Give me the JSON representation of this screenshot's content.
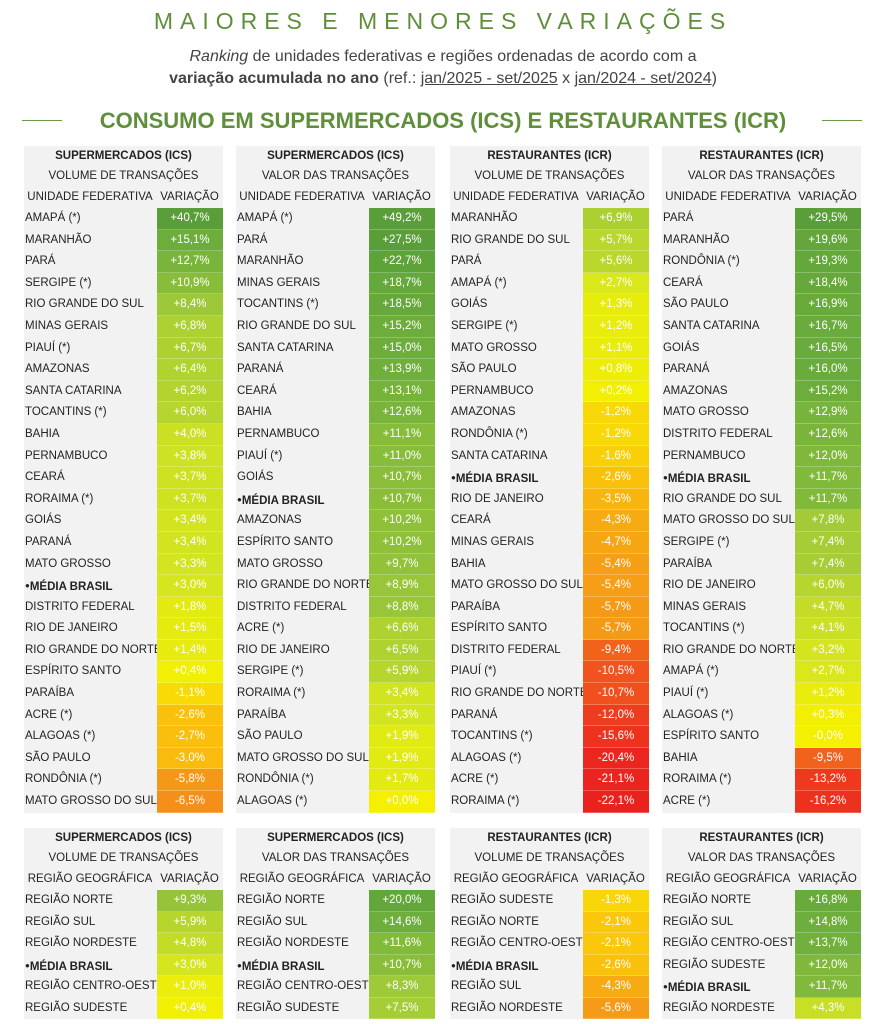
{
  "header": {
    "title": "MAIORES E MENORES VARIAÇÕES",
    "subtitle_italic": "Ranking",
    "subtitle_rest": " de unidades federativas e regiões ordenadas de acordo com a",
    "subtitle2_bold": "variação acumulada no ano",
    "subtitle2_ref": " (ref.: ",
    "period_current": "jan/2025 - set/2025",
    "versus": " x  ",
    "period_previous": "jan/2024 - set/2024",
    "close_paren": ")",
    "section_title": "CONSUMO EM SUPERMERCADOS (ICS) E RESTAURANTES (ICR)"
  },
  "colors": {
    "green_dark": "#5b9e3a",
    "green_light": "#a6cc37",
    "yellow": "#f2ee00",
    "orange": "#f4951a",
    "red": "#ea2a22",
    "title_green": "#5f8f3a"
  },
  "uf_tables": [
    {
      "title": "SUPERMERCADOS (ICS)",
      "subtitle": "VOLUME DE TRANSAÇÕES",
      "col_name": "UNIDADE FEDERATIVA",
      "col_value": "VARIAÇÃO",
      "rows": [
        {
          "name": "AMAPÁ (*)",
          "value": "+40,7%",
          "num": 40.7
        },
        {
          "name": "MARANHÃO",
          "value": "+15,1%",
          "num": 15.1
        },
        {
          "name": "PARÁ",
          "value": "+12,7%",
          "num": 12.7
        },
        {
          "name": "SERGIPE (*)",
          "value": "+10,9%",
          "num": 10.9
        },
        {
          "name": "RIO GRANDE DO SUL",
          "value": "+8,4%",
          "num": 8.4
        },
        {
          "name": "MINAS GERAIS",
          "value": "+6,8%",
          "num": 6.8
        },
        {
          "name": "PIAUÍ (*)",
          "value": "+6,7%",
          "num": 6.7
        },
        {
          "name": "AMAZONAS",
          "value": "+6,4%",
          "num": 6.4
        },
        {
          "name": "SANTA CATARINA",
          "value": "+6,2%",
          "num": 6.2
        },
        {
          "name": "TOCANTINS (*)",
          "value": "+6,0%",
          "num": 6.0
        },
        {
          "name": "BAHIA",
          "value": "+4,0%",
          "num": 4.0
        },
        {
          "name": "PERNAMBUCO",
          "value": "+3,8%",
          "num": 3.8
        },
        {
          "name": "CEARÁ",
          "value": "+3,7%",
          "num": 3.7
        },
        {
          "name": "RORAIMA (*)",
          "value": "+3,7%",
          "num": 3.7
        },
        {
          "name": "GOIÁS",
          "value": "+3,4%",
          "num": 3.4
        },
        {
          "name": "PARANÁ",
          "value": "+3,4%",
          "num": 3.4
        },
        {
          "name": "MATO GROSSO",
          "value": "+3,3%",
          "num": 3.3
        },
        {
          "name": "MÉDIA BRASIL",
          "value": "+3,0%",
          "num": 3.0,
          "avg": true
        },
        {
          "name": "DISTRITO FEDERAL",
          "value": "+1,8%",
          "num": 1.8
        },
        {
          "name": "RIO DE JANEIRO",
          "value": "+1,5%",
          "num": 1.5
        },
        {
          "name": "RIO GRANDE DO NORTE",
          "value": "+1,4%",
          "num": 1.4
        },
        {
          "name": "ESPÍRITO SANTO",
          "value": "+0,4%",
          "num": 0.4
        },
        {
          "name": "PARAÍBA",
          "value": "-1,1%",
          "num": -1.1
        },
        {
          "name": "ACRE (*)",
          "value": "-2,6%",
          "num": -2.6
        },
        {
          "name": "ALAGOAS (*)",
          "value": "-2,7%",
          "num": -2.7
        },
        {
          "name": "SÃO PAULO",
          "value": "-3,0%",
          "num": -3.0
        },
        {
          "name": "RONDÔNIA (*)",
          "value": "-5,8%",
          "num": -5.8
        },
        {
          "name": "MATO GROSSO DO SUL",
          "value": "-6,5%",
          "num": -6.5
        }
      ]
    },
    {
      "title": "SUPERMERCADOS (ICS)",
      "subtitle": "VALOR DAS TRANSAÇÕES",
      "col_name": "UNIDADE FEDERATIVA",
      "col_value": "VARIAÇÃO",
      "rows": [
        {
          "name": "AMAPÁ (*)",
          "value": "+49,2%",
          "num": 49.2
        },
        {
          "name": "PARÁ",
          "value": "+27,5%",
          "num": 27.5
        },
        {
          "name": "MARANHÃO",
          "value": "+22,7%",
          "num": 22.7
        },
        {
          "name": "MINAS GERAIS",
          "value": "+18,7%",
          "num": 18.7
        },
        {
          "name": "TOCANTINS (*)",
          "value": "+18,5%",
          "num": 18.5
        },
        {
          "name": "RIO GRANDE DO SUL",
          "value": "+15,2%",
          "num": 15.2
        },
        {
          "name": "SANTA CATARINA",
          "value": "+15,0%",
          "num": 15.0
        },
        {
          "name": "PARANÁ",
          "value": "+13,9%",
          "num": 13.9
        },
        {
          "name": "CEARÁ",
          "value": "+13,1%",
          "num": 13.1
        },
        {
          "name": "BAHIA",
          "value": "+12,6%",
          "num": 12.6
        },
        {
          "name": "PERNAMBUCO",
          "value": "+11,1%",
          "num": 11.1
        },
        {
          "name": "PIAUÍ (*)",
          "value": "+11,0%",
          "num": 11.0
        },
        {
          "name": "GOIÁS",
          "value": "+10,7%",
          "num": 10.7
        },
        {
          "name": "MÉDIA BRASIL",
          "value": "+10,7%",
          "num": 10.7,
          "avg": true
        },
        {
          "name": "AMAZONAS",
          "value": "+10,2%",
          "num": 10.2
        },
        {
          "name": "ESPÍRITO SANTO",
          "value": "+10,2%",
          "num": 10.2
        },
        {
          "name": "MATO GROSSO",
          "value": "+9,7%",
          "num": 9.7
        },
        {
          "name": "RIO GRANDE DO NORTE",
          "value": "+8,9%",
          "num": 8.9
        },
        {
          "name": "DISTRITO FEDERAL",
          "value": "+8,8%",
          "num": 8.8
        },
        {
          "name": "ACRE (*)",
          "value": "+6,6%",
          "num": 6.6
        },
        {
          "name": "RIO DE JANEIRO",
          "value": "+6,5%",
          "num": 6.5
        },
        {
          "name": "SERGIPE (*)",
          "value": "+5,9%",
          "num": 5.9
        },
        {
          "name": "RORAIMA (*)",
          "value": "+3,4%",
          "num": 3.4
        },
        {
          "name": "PARAÍBA",
          "value": "+3,3%",
          "num": 3.3
        },
        {
          "name": "SÃO PAULO",
          "value": "+1,9%",
          "num": 1.9
        },
        {
          "name": "MATO GROSSO DO SUL",
          "value": "+1,9%",
          "num": 1.9
        },
        {
          "name": "RONDÔNIA (*)",
          "value": "+1,7%",
          "num": 1.7
        },
        {
          "name": "ALAGOAS (*)",
          "value": "+0,0%",
          "num": 0.0
        }
      ]
    },
    {
      "title": "RESTAURANTES (ICR)",
      "subtitle": "VOLUME DE TRANSAÇÕES",
      "col_name": "UNIDADE FEDERATIVA",
      "col_value": "VARIAÇÃO",
      "rows": [
        {
          "name": "MARANHÃO",
          "value": "+6,9%",
          "num": 6.9
        },
        {
          "name": "RIO GRANDE DO SUL",
          "value": "+5,7%",
          "num": 5.7
        },
        {
          "name": "PARÁ",
          "value": "+5,6%",
          "num": 5.6
        },
        {
          "name": "AMAPÁ (*)",
          "value": "+2,7%",
          "num": 2.7
        },
        {
          "name": "GOIÁS",
          "value": "+1,3%",
          "num": 1.3
        },
        {
          "name": "SERGIPE (*)",
          "value": "+1,2%",
          "num": 1.2
        },
        {
          "name": "MATO GROSSO",
          "value": "+1,1%",
          "num": 1.1
        },
        {
          "name": "SÃO PAULO",
          "value": "+0,8%",
          "num": 0.8
        },
        {
          "name": "PERNAMBUCO",
          "value": "+0,2%",
          "num": 0.2
        },
        {
          "name": "AMAZONAS",
          "value": "-1,2%",
          "num": -1.2
        },
        {
          "name": "RONDÔNIA (*)",
          "value": "-1,2%",
          "num": -1.2
        },
        {
          "name": "SANTA CATARINA",
          "value": "-1,6%",
          "num": -1.6
        },
        {
          "name": "MÉDIA BRASIL",
          "value": "-2,6%",
          "num": -2.6,
          "avg": true
        },
        {
          "name": "RIO DE JANEIRO",
          "value": "-3,5%",
          "num": -3.5
        },
        {
          "name": "CEARÁ",
          "value": "-4,3%",
          "num": -4.3
        },
        {
          "name": "MINAS GERAIS",
          "value": "-4,7%",
          "num": -4.7
        },
        {
          "name": "BAHIA",
          "value": "-5,4%",
          "num": -5.4
        },
        {
          "name": "MATO GROSSO DO SUL",
          "value": "-5,4%",
          "num": -5.4
        },
        {
          "name": "PARAÍBA",
          "value": "-5,7%",
          "num": -5.7
        },
        {
          "name": "ESPÍRITO SANTO",
          "value": "-5,7%",
          "num": -5.7
        },
        {
          "name": "DISTRITO FEDERAL",
          "value": "-9,4%",
          "num": -9.4
        },
        {
          "name": "PIAUÍ (*)",
          "value": "-10,5%",
          "num": -10.5
        },
        {
          "name": "RIO GRANDE DO NORTE",
          "value": "-10,7%",
          "num": -10.7
        },
        {
          "name": "PARANÁ",
          "value": "-12,0%",
          "num": -12.0
        },
        {
          "name": "TOCANTINS (*)",
          "value": "-15,6%",
          "num": -15.6
        },
        {
          "name": "ALAGOAS (*)",
          "value": "-20,4%",
          "num": -20.4
        },
        {
          "name": "ACRE (*)",
          "value": "-21,1%",
          "num": -21.1
        },
        {
          "name": "RORAIMA (*)",
          "value": "-22,1%",
          "num": -22.1
        }
      ]
    },
    {
      "title": "RESTAURANTES (ICR)",
      "subtitle": "VALOR DAS TRANSAÇÕES",
      "col_name": "UNIDADE FEDERATIVA",
      "col_value": "VARIAÇÃO",
      "rows": [
        {
          "name": "PARÁ",
          "value": "+29,5%",
          "num": 29.5
        },
        {
          "name": "MARANHÃO",
          "value": "+19,6%",
          "num": 19.6
        },
        {
          "name": "RONDÔNIA (*)",
          "value": "+19,3%",
          "num": 19.3
        },
        {
          "name": "CEARÁ",
          "value": "+18,4%",
          "num": 18.4
        },
        {
          "name": "SÃO PAULO",
          "value": "+16,9%",
          "num": 16.9
        },
        {
          "name": "SANTA CATARINA",
          "value": "+16,7%",
          "num": 16.7
        },
        {
          "name": "GOIÁS",
          "value": "+16,5%",
          "num": 16.5
        },
        {
          "name": "PARANÁ",
          "value": "+16,0%",
          "num": 16.0
        },
        {
          "name": "AMAZONAS",
          "value": "+15,2%",
          "num": 15.2
        },
        {
          "name": "MATO GROSSO",
          "value": "+12,9%",
          "num": 12.9
        },
        {
          "name": "DISTRITO FEDERAL",
          "value": "+12,6%",
          "num": 12.6
        },
        {
          "name": "PERNAMBUCO",
          "value": "+12,0%",
          "num": 12.0
        },
        {
          "name": "MÉDIA BRASIL",
          "value": "+11,7%",
          "num": 11.7,
          "avg": true
        },
        {
          "name": "RIO GRANDE DO SUL",
          "value": "+11,7%",
          "num": 11.7
        },
        {
          "name": "MATO GROSSO DO SUL",
          "value": "+7,8%",
          "num": 7.8
        },
        {
          "name": "SERGIPE (*)",
          "value": "+7,4%",
          "num": 7.4
        },
        {
          "name": "PARAÍBA",
          "value": "+7,4%",
          "num": 7.4
        },
        {
          "name": "RIO DE JANEIRO",
          "value": "+6,0%",
          "num": 6.0
        },
        {
          "name": "MINAS GERAIS",
          "value": "+4,7%",
          "num": 4.7
        },
        {
          "name": "TOCANTINS (*)",
          "value": "+4,1%",
          "num": 4.1
        },
        {
          "name": "RIO GRANDE DO NORTE",
          "value": "+3,2%",
          "num": 3.2
        },
        {
          "name": "AMAPÁ (*)",
          "value": "+2,7%",
          "num": 2.7
        },
        {
          "name": "PIAUÍ (*)",
          "value": "+1,2%",
          "num": 1.2
        },
        {
          "name": "ALAGOAS (*)",
          "value": "+0,3%",
          "num": 0.3
        },
        {
          "name": "ESPÍRITO SANTO",
          "value": "-0,0%",
          "num": 0.0
        },
        {
          "name": "BAHIA",
          "value": "-9,5%",
          "num": -9.5
        },
        {
          "name": "RORAIMA (*)",
          "value": "-13,2%",
          "num": -13.2
        },
        {
          "name": "ACRE (*)",
          "value": "-16,2%",
          "num": -16.2
        }
      ]
    }
  ],
  "region_tables": [
    {
      "title": "SUPERMERCADOS (ICS)",
      "subtitle": "VOLUME DE TRANSAÇÕES",
      "col_name": "REGIÃO GEOGRÁFICA",
      "col_value": "VARIAÇÃO",
      "rows": [
        {
          "name": "REGIÃO NORTE",
          "value": "+9,3%",
          "num": 9.3
        },
        {
          "name": "REGIÃO SUL",
          "value": "+5,9%",
          "num": 5.9
        },
        {
          "name": "REGIÃO NORDESTE",
          "value": "+4,8%",
          "num": 4.8
        },
        {
          "name": "MÉDIA BRASIL",
          "value": "+3,0%",
          "num": 3.0,
          "avg": true
        },
        {
          "name": "REGIÃO CENTRO-OESTE",
          "value": "+1,0%",
          "num": 1.0
        },
        {
          "name": "REGIÃO SUDESTE",
          "value": "+0,4%",
          "num": 0.4
        }
      ]
    },
    {
      "title": "SUPERMERCADOS (ICS)",
      "subtitle": "VALOR DAS TRANSAÇÕES",
      "col_name": "REGIÃO GEOGRÁFICA",
      "col_value": "VARIAÇÃO",
      "rows": [
        {
          "name": "REGIÃO NORTE",
          "value": "+20,0%",
          "num": 20.0
        },
        {
          "name": "REGIÃO SUL",
          "value": "+14,6%",
          "num": 14.6
        },
        {
          "name": "REGIÃO NORDESTE",
          "value": "+11,6%",
          "num": 11.6
        },
        {
          "name": "MÉDIA BRASIL",
          "value": "+10,7%",
          "num": 10.7,
          "avg": true
        },
        {
          "name": "REGIÃO CENTRO-OESTE",
          "value": "+8,3%",
          "num": 8.3
        },
        {
          "name": "REGIÃO SUDESTE",
          "value": "+7,5%",
          "num": 7.5
        }
      ]
    },
    {
      "title": "RESTAURANTES (ICR)",
      "subtitle": "VOLUME DE TRANSAÇÕES",
      "col_name": "REGIÃO GEOGRÁFICA",
      "col_value": "VARIAÇÃO",
      "rows": [
        {
          "name": "REGIÃO SUDESTE",
          "value": "-1,3%",
          "num": -1.3
        },
        {
          "name": "REGIÃO NORTE",
          "value": "-2,1%",
          "num": -2.1
        },
        {
          "name": "REGIÃO CENTRO-OESTE",
          "value": "-2,1%",
          "num": -2.1
        },
        {
          "name": "MÉDIA BRASIL",
          "value": "-2,6%",
          "num": -2.6,
          "avg": true
        },
        {
          "name": "REGIÃO SUL",
          "value": "-4,3%",
          "num": -4.3
        },
        {
          "name": "REGIÃO NORDESTE",
          "value": "-5,6%",
          "num": -5.6
        }
      ]
    },
    {
      "title": "RESTAURANTES (ICR)",
      "subtitle": "VALOR DAS TRANSAÇÕES",
      "col_name": "REGIÃO GEOGRÁFICA",
      "col_value": "VARIAÇÃO",
      "rows": [
        {
          "name": "REGIÃO NORTE",
          "value": "+16,8%",
          "num": 16.8
        },
        {
          "name": "REGIÃO SUL",
          "value": "+14,8%",
          "num": 14.8
        },
        {
          "name": "REGIÃO CENTRO-OESTE",
          "value": "+13,7%",
          "num": 13.7
        },
        {
          "name": "REGIÃO SUDESTE",
          "value": "+12,0%",
          "num": 12.0
        },
        {
          "name": "MÉDIA BRASIL",
          "value": "+11,7%",
          "num": 11.7,
          "avg": true
        },
        {
          "name": "REGIÃO NORDESTE",
          "value": "+4,3%",
          "num": 4.3
        }
      ]
    }
  ]
}
